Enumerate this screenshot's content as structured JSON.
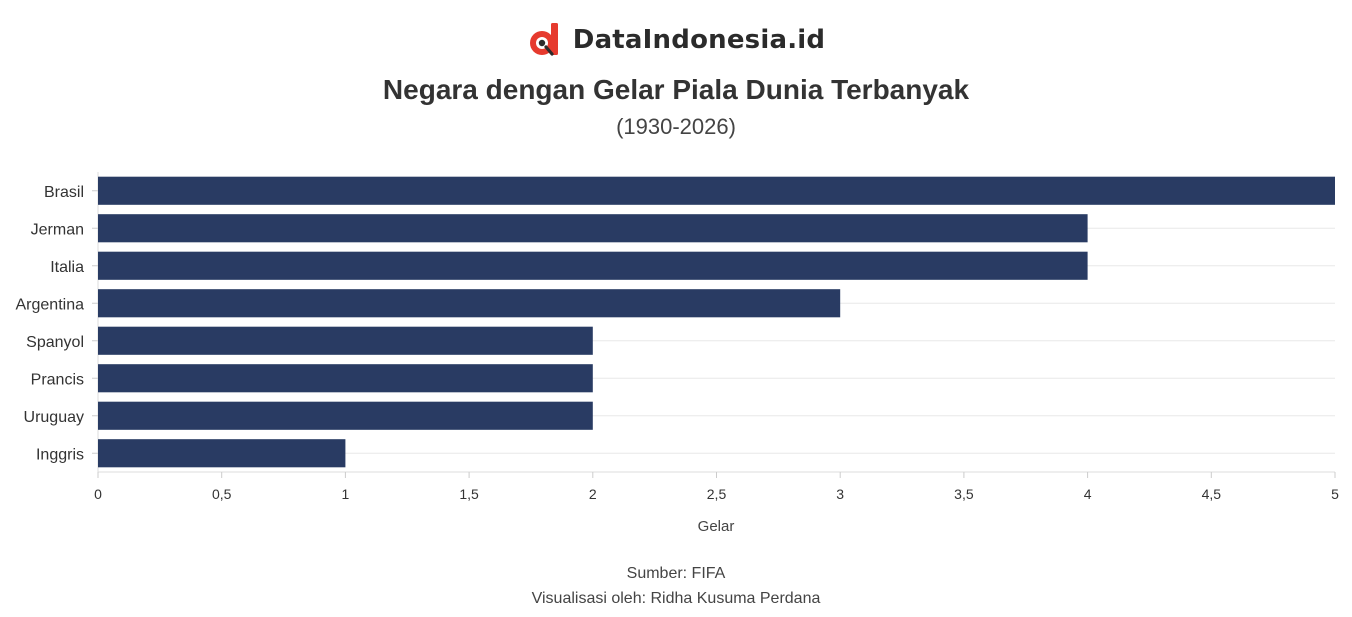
{
  "brand": {
    "name": "DataIndonesia.id",
    "logo_icon": "dataindonesia-logo-icon",
    "colors": {
      "logo_red": "#e63a2e",
      "logo_dark": "#2b2b2b"
    }
  },
  "chart_data": {
    "type": "bar",
    "orientation": "horizontal",
    "title": "Negara dengan Gelar Piala Dunia Terbanyak",
    "subtitle": "(1930-2026)",
    "categories": [
      "Brasil",
      "Jerman",
      "Italia",
      "Argentina",
      "Spanyol",
      "Prancis",
      "Uruguay",
      "Inggris"
    ],
    "values": [
      5,
      4,
      4,
      3,
      2,
      2,
      2,
      1
    ],
    "xlabel": "Gelar",
    "ylabel": "",
    "xlim": [
      0,
      5
    ],
    "xticks": [
      "0",
      "0,5",
      "1",
      "1,5",
      "2",
      "2,5",
      "3",
      "3,5",
      "4",
      "4,5",
      "5"
    ],
    "xtick_values": [
      0,
      0.5,
      1,
      1.5,
      2,
      2.5,
      3,
      3.5,
      4,
      4.5,
      5
    ],
    "grid": true,
    "legend": "none",
    "bar_color": "#293b63"
  },
  "footer": {
    "source": "Sumber: FIFA",
    "credit": "Visualisasi oleh: Ridha Kusuma Perdana"
  }
}
